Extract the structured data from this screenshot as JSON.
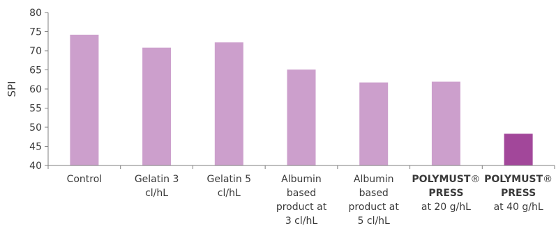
{
  "chart_data": {
    "type": "bar",
    "ylabel": "SPI",
    "xlabel": "",
    "ylim": [
      40,
      80
    ],
    "yticks": [
      40,
      45,
      50,
      55,
      60,
      65,
      70,
      75,
      80
    ],
    "grid": false,
    "categories": [
      {
        "lines": [
          [
            "Control"
          ]
        ]
      },
      {
        "lines": [
          [
            "Gelatin 3"
          ],
          [
            "cl/hL"
          ]
        ]
      },
      {
        "lines": [
          [
            "Gelatin 5"
          ],
          [
            "cl/hL"
          ]
        ]
      },
      {
        "lines": [
          [
            "Albumin"
          ],
          [
            "based"
          ],
          [
            "product at"
          ],
          [
            "3 cl/hL"
          ]
        ]
      },
      {
        "lines": [
          [
            "Albumin"
          ],
          [
            "based"
          ],
          [
            "product at"
          ],
          [
            "5 cl/hL"
          ]
        ]
      },
      {
        "lines": [
          [
            "POLYMUST",
            "®"
          ],
          [
            "PRESS"
          ],
          [
            "at 20 g/hL"
          ]
        ],
        "bold_lines": [
          0,
          1
        ]
      },
      {
        "lines": [
          [
            "POLYMUST",
            "®"
          ],
          [
            "PRESS"
          ],
          [
            "at 40 g/hL"
          ]
        ],
        "bold_lines": [
          0,
          1
        ]
      }
    ],
    "values": [
      74.2,
      70.8,
      72.2,
      65.1,
      61.7,
      61.9,
      48.3
    ],
    "colors": [
      "#cc9fcc",
      "#cc9fcc",
      "#cc9fcc",
      "#cc9fcc",
      "#cc9fcc",
      "#cc9fcc",
      "#a2479a"
    ],
    "axis_color": "#7f7f7f"
  }
}
